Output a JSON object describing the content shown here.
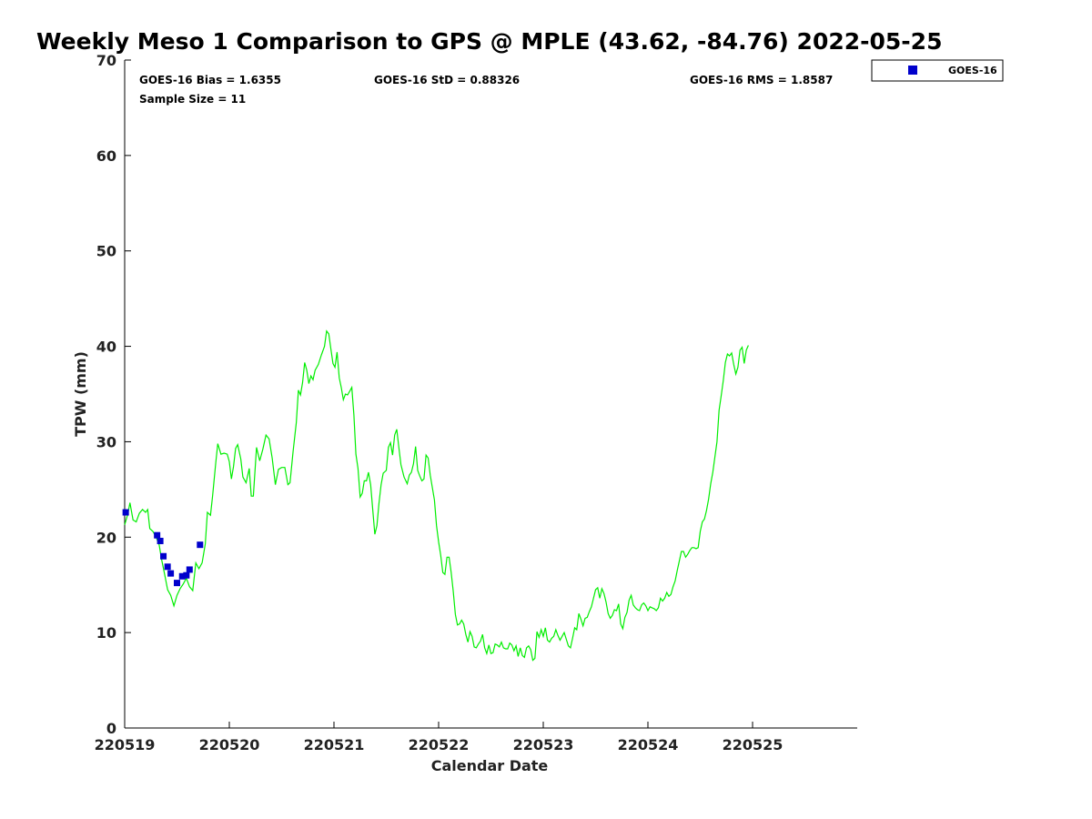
{
  "chart_data": {
    "type": "scatter+line",
    "title": "Weekly Meso 1 Comparison to GPS @ MPLE (43.62, -84.76) 2022-05-25",
    "xlabel": "Calendar Date",
    "ylabel": "TPW (mm)",
    "xlim": [
      0,
      7
    ],
    "ylim": [
      0,
      70
    ],
    "x_ticks": [
      {
        "value": 0,
        "label": "220519"
      },
      {
        "value": 1,
        "label": "220520"
      },
      {
        "value": 2,
        "label": "220521"
      },
      {
        "value": 3,
        "label": "220522"
      },
      {
        "value": 4,
        "label": "220523"
      },
      {
        "value": 5,
        "label": "220524"
      },
      {
        "value": 6,
        "label": "220525"
      }
    ],
    "y_ticks": [
      0,
      10,
      20,
      30,
      40,
      50,
      60,
      70
    ],
    "stats": {
      "bias": "GOES-16 Bias = 1.6355",
      "std": "GOES-16 StD = 0.88326",
      "rms": "GOES-16 RMS = 1.8587",
      "sample": "Sample Size = 11"
    },
    "legend": {
      "label": "GOES-16",
      "position": "top-right outside"
    },
    "colors": {
      "goes": "#0000cc",
      "gps": "#00ee00",
      "axis": "#000000"
    },
    "series": [
      {
        "name": "GPS",
        "style": "line",
        "points": [
          [
            0.0,
            21.3
          ],
          [
            0.03,
            22.4
          ],
          [
            0.05,
            23.6
          ],
          [
            0.08,
            21.8
          ],
          [
            0.11,
            21.6
          ],
          [
            0.14,
            22.5
          ],
          [
            0.17,
            22.9
          ],
          [
            0.2,
            22.6
          ],
          [
            0.22,
            22.9
          ],
          [
            0.24,
            20.9
          ],
          [
            0.27,
            20.6
          ],
          [
            0.3,
            20.0
          ],
          [
            0.33,
            19.2
          ],
          [
            0.35,
            17.8
          ],
          [
            0.38,
            16.2
          ],
          [
            0.41,
            14.5
          ],
          [
            0.44,
            13.9
          ],
          [
            0.47,
            12.8
          ],
          [
            0.5,
            13.9
          ],
          [
            0.53,
            14.6
          ],
          [
            0.56,
            15.1
          ],
          [
            0.59,
            15.7
          ],
          [
            0.62,
            14.8
          ],
          [
            0.65,
            14.4
          ],
          [
            0.68,
            17.3
          ],
          [
            0.71,
            16.7
          ],
          [
            0.74,
            17.3
          ],
          [
            0.77,
            19.3
          ],
          [
            0.79,
            22.6
          ],
          [
            0.82,
            22.3
          ],
          [
            0.84,
            24.3
          ],
          [
            0.87,
            27.8
          ],
          [
            0.89,
            29.8
          ],
          [
            0.92,
            28.7
          ],
          [
            0.95,
            28.8
          ],
          [
            0.98,
            28.7
          ],
          [
            1.0,
            27.9
          ],
          [
            1.02,
            26.1
          ],
          [
            1.04,
            27.4
          ],
          [
            1.06,
            29.3
          ],
          [
            1.08,
            29.7
          ],
          [
            1.11,
            28.2
          ],
          [
            1.13,
            26.3
          ],
          [
            1.16,
            25.7
          ],
          [
            1.19,
            27.2
          ],
          [
            1.21,
            24.3
          ],
          [
            1.23,
            24.3
          ],
          [
            1.26,
            29.4
          ],
          [
            1.29,
            28.0
          ],
          [
            1.32,
            29.2
          ],
          [
            1.35,
            30.7
          ],
          [
            1.38,
            30.3
          ],
          [
            1.41,
            28.3
          ],
          [
            1.44,
            25.5
          ],
          [
            1.47,
            27.1
          ],
          [
            1.5,
            27.3
          ],
          [
            1.53,
            27.3
          ],
          [
            1.56,
            25.5
          ],
          [
            1.58,
            25.7
          ],
          [
            1.61,
            29.0
          ],
          [
            1.64,
            32.0
          ],
          [
            1.66,
            35.4
          ],
          [
            1.68,
            34.9
          ],
          [
            1.7,
            36.2
          ],
          [
            1.72,
            38.3
          ],
          [
            1.74,
            37.5
          ],
          [
            1.76,
            36.1
          ],
          [
            1.78,
            36.9
          ],
          [
            1.8,
            36.5
          ],
          [
            1.82,
            37.5
          ],
          [
            1.85,
            38.1
          ],
          [
            1.88,
            39.1
          ],
          [
            1.91,
            40.0
          ],
          [
            1.93,
            41.6
          ],
          [
            1.95,
            41.3
          ],
          [
            1.97,
            39.8
          ],
          [
            1.99,
            38.2
          ],
          [
            2.01,
            37.8
          ],
          [
            2.03,
            39.4
          ],
          [
            2.05,
            36.7
          ],
          [
            2.07,
            35.7
          ],
          [
            2.09,
            34.4
          ],
          [
            2.11,
            35.0
          ],
          [
            2.13,
            34.9
          ],
          [
            2.15,
            35.3
          ],
          [
            2.17,
            35.7
          ],
          [
            2.19,
            32.8
          ],
          [
            2.21,
            28.7
          ],
          [
            2.23,
            27.2
          ],
          [
            2.25,
            24.2
          ],
          [
            2.27,
            24.6
          ],
          [
            2.29,
            25.9
          ],
          [
            2.31,
            25.9
          ],
          [
            2.33,
            26.8
          ],
          [
            2.35,
            25.5
          ],
          [
            2.37,
            22.9
          ],
          [
            2.39,
            20.3
          ],
          [
            2.41,
            21.2
          ],
          [
            2.43,
            23.5
          ],
          [
            2.45,
            25.5
          ],
          [
            2.47,
            26.7
          ],
          [
            2.5,
            27.0
          ],
          [
            2.52,
            29.4
          ],
          [
            2.54,
            29.9
          ],
          [
            2.56,
            28.6
          ],
          [
            2.58,
            30.7
          ],
          [
            2.6,
            31.3
          ],
          [
            2.62,
            29.4
          ],
          [
            2.64,
            27.6
          ],
          [
            2.67,
            26.3
          ],
          [
            2.7,
            25.6
          ],
          [
            2.72,
            26.5
          ],
          [
            2.74,
            26.8
          ],
          [
            2.76,
            27.7
          ],
          [
            2.78,
            29.5
          ],
          [
            2.8,
            27.0
          ],
          [
            2.82,
            26.4
          ],
          [
            2.84,
            25.9
          ],
          [
            2.86,
            26.1
          ],
          [
            2.88,
            28.6
          ],
          [
            2.9,
            28.3
          ],
          [
            2.92,
            26.5
          ],
          [
            2.94,
            25.2
          ],
          [
            2.96,
            23.9
          ],
          [
            2.98,
            21.2
          ],
          [
            3.0,
            19.5
          ],
          [
            3.02,
            18.1
          ],
          [
            3.04,
            16.3
          ],
          [
            3.06,
            16.1
          ],
          [
            3.08,
            17.9
          ],
          [
            3.1,
            17.9
          ],
          [
            3.12,
            16.3
          ],
          [
            3.14,
            14.3
          ],
          [
            3.16,
            11.9
          ],
          [
            3.18,
            10.8
          ],
          [
            3.2,
            10.9
          ],
          [
            3.22,
            11.3
          ],
          [
            3.24,
            10.9
          ],
          [
            3.26,
            9.8
          ],
          [
            3.28,
            9.0
          ],
          [
            3.3,
            10.1
          ],
          [
            3.32,
            9.6
          ],
          [
            3.34,
            8.5
          ],
          [
            3.36,
            8.4
          ],
          [
            3.38,
            8.8
          ],
          [
            3.4,
            9.1
          ],
          [
            3.42,
            9.8
          ],
          [
            3.44,
            8.4
          ],
          [
            3.46,
            7.8
          ],
          [
            3.48,
            8.7
          ],
          [
            3.5,
            7.8
          ],
          [
            3.52,
            7.9
          ],
          [
            3.54,
            8.8
          ],
          [
            3.56,
            8.7
          ],
          [
            3.58,
            8.5
          ],
          [
            3.6,
            9.0
          ],
          [
            3.62,
            8.4
          ],
          [
            3.64,
            8.3
          ],
          [
            3.66,
            8.3
          ],
          [
            3.68,
            8.9
          ],
          [
            3.7,
            8.7
          ],
          [
            3.72,
            8.1
          ],
          [
            3.74,
            8.6
          ],
          [
            3.76,
            7.5
          ],
          [
            3.78,
            8.4
          ],
          [
            3.8,
            7.6
          ],
          [
            3.82,
            7.4
          ],
          [
            3.84,
            8.4
          ],
          [
            3.86,
            8.6
          ],
          [
            3.88,
            8.2
          ],
          [
            3.9,
            7.1
          ],
          [
            3.92,
            7.3
          ],
          [
            3.94,
            10.1
          ],
          [
            3.96,
            9.5
          ],
          [
            3.98,
            10.3
          ],
          [
            4.0,
            9.6
          ],
          [
            4.02,
            10.5
          ],
          [
            4.04,
            9.2
          ],
          [
            4.06,
            9.0
          ],
          [
            4.08,
            9.4
          ],
          [
            4.1,
            9.6
          ],
          [
            4.12,
            10.3
          ],
          [
            4.14,
            9.7
          ],
          [
            4.16,
            9.2
          ],
          [
            4.18,
            9.6
          ],
          [
            4.2,
            10.0
          ],
          [
            4.22,
            9.3
          ],
          [
            4.24,
            8.6
          ],
          [
            4.26,
            8.4
          ],
          [
            4.28,
            9.4
          ],
          [
            4.3,
            10.5
          ],
          [
            4.32,
            10.3
          ],
          [
            4.34,
            12.0
          ],
          [
            4.36,
            11.4
          ],
          [
            4.38,
            10.7
          ],
          [
            4.4,
            11.5
          ],
          [
            4.42,
            11.6
          ],
          [
            4.44,
            12.2
          ],
          [
            4.46,
            12.7
          ],
          [
            4.48,
            13.6
          ],
          [
            4.5,
            14.5
          ],
          [
            4.52,
            14.7
          ],
          [
            4.54,
            13.6
          ],
          [
            4.56,
            14.6
          ],
          [
            4.58,
            14.1
          ],
          [
            4.6,
            13.2
          ],
          [
            4.62,
            12.0
          ],
          [
            4.64,
            11.5
          ],
          [
            4.66,
            11.8
          ],
          [
            4.68,
            12.4
          ],
          [
            4.7,
            12.3
          ],
          [
            4.72,
            13.0
          ],
          [
            4.74,
            10.9
          ],
          [
            4.76,
            10.4
          ],
          [
            4.78,
            11.6
          ],
          [
            4.8,
            12.1
          ],
          [
            4.82,
            13.4
          ],
          [
            4.84,
            13.9
          ],
          [
            4.86,
            12.9
          ],
          [
            4.88,
            12.6
          ],
          [
            4.9,
            12.4
          ],
          [
            4.92,
            12.3
          ],
          [
            4.94,
            12.9
          ],
          [
            4.96,
            13.1
          ],
          [
            4.98,
            12.8
          ],
          [
            5.0,
            12.3
          ],
          [
            5.02,
            12.7
          ],
          [
            5.04,
            12.6
          ],
          [
            5.06,
            12.5
          ],
          [
            5.08,
            12.3
          ],
          [
            5.1,
            12.6
          ],
          [
            5.12,
            13.6
          ],
          [
            5.14,
            13.3
          ],
          [
            5.16,
            13.6
          ],
          [
            5.18,
            14.2
          ],
          [
            5.2,
            13.8
          ],
          [
            5.22,
            14.0
          ],
          [
            5.24,
            14.8
          ],
          [
            5.26,
            15.4
          ],
          [
            5.28,
            16.5
          ],
          [
            5.3,
            17.5
          ],
          [
            5.32,
            18.5
          ],
          [
            5.34,
            18.5
          ],
          [
            5.36,
            17.9
          ],
          [
            5.38,
            18.2
          ],
          [
            5.4,
            18.6
          ],
          [
            5.42,
            18.9
          ],
          [
            5.44,
            18.9
          ],
          [
            5.46,
            18.8
          ],
          [
            5.48,
            18.9
          ],
          [
            5.5,
            20.6
          ],
          [
            5.52,
            21.6
          ],
          [
            5.54,
            21.9
          ],
          [
            5.56,
            22.8
          ],
          [
            5.58,
            24.0
          ],
          [
            5.6,
            25.6
          ],
          [
            5.62,
            26.8
          ],
          [
            5.64,
            28.4
          ],
          [
            5.66,
            30.0
          ],
          [
            5.68,
            33.3
          ],
          [
            5.7,
            34.8
          ],
          [
            5.72,
            36.4
          ],
          [
            5.74,
            38.3
          ],
          [
            5.76,
            39.2
          ],
          [
            5.78,
            39.0
          ],
          [
            5.8,
            39.3
          ],
          [
            5.82,
            38.1
          ],
          [
            5.84,
            37.1
          ],
          [
            5.86,
            37.8
          ],
          [
            5.88,
            39.6
          ],
          [
            5.9,
            39.9
          ],
          [
            5.92,
            38.2
          ],
          [
            5.94,
            39.6
          ],
          [
            5.96,
            40.1
          ]
        ]
      },
      {
        "name": "GOES-16",
        "style": "square-markers",
        "points": [
          [
            0.01,
            22.6
          ],
          [
            0.31,
            20.2
          ],
          [
            0.34,
            19.6
          ],
          [
            0.37,
            18.0
          ],
          [
            0.41,
            16.9
          ],
          [
            0.44,
            16.2
          ],
          [
            0.5,
            15.2
          ],
          [
            0.55,
            15.9
          ],
          [
            0.59,
            16.0
          ],
          [
            0.62,
            16.6
          ],
          [
            0.72,
            19.2
          ]
        ]
      }
    ]
  }
}
